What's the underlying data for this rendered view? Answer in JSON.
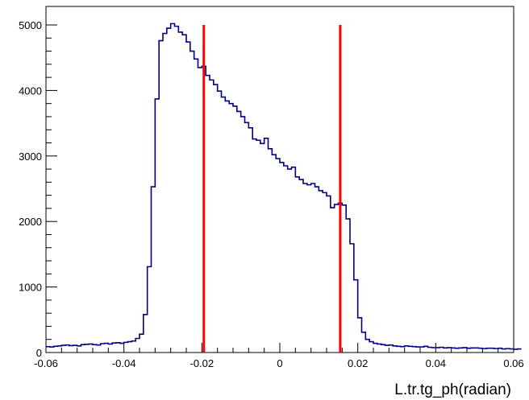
{
  "chart_data": {
    "type": "histogram",
    "title": "",
    "xlabel": "L.tr.tg_ph(radian)",
    "ylabel": "",
    "xlim": [
      -0.06,
      0.06
    ],
    "ylim": [
      0,
      5000
    ],
    "grid": false,
    "legend": "none",
    "x_ticks": [
      -0.06,
      -0.04,
      -0.02,
      0,
      0.02,
      0.04,
      0.06
    ],
    "x_tick_labels": [
      "-0.06",
      "-0.04",
      "-0.02",
      "0",
      "0.02",
      "0.04",
      "0.06"
    ],
    "y_ticks": [
      0,
      1000,
      2000,
      3000,
      4000,
      5000
    ],
    "y_tick_labels": [
      "0",
      "1000",
      "2000",
      "3000",
      "4000",
      "5000"
    ],
    "bin_start": -0.06,
    "bin_width": 0.001,
    "counts": [
      90,
      85,
      95,
      100,
      110,
      115,
      105,
      110,
      100,
      120,
      125,
      130,
      120,
      115,
      135,
      140,
      130,
      145,
      150,
      140,
      155,
      165,
      175,
      215,
      280,
      580,
      1310,
      2530,
      3870,
      4760,
      4870,
      4950,
      5020,
      4980,
      4890,
      4850,
      4740,
      4600,
      4480,
      4350,
      4370,
      4230,
      4160,
      4090,
      3990,
      3900,
      3840,
      3800,
      3760,
      3680,
      3600,
      3510,
      3430,
      3260,
      3240,
      3190,
      3270,
      3110,
      3020,
      2960,
      2900,
      2850,
      2800,
      2830,
      2680,
      2640,
      2580,
      2560,
      2580,
      2530,
      2470,
      2440,
      2390,
      2210,
      2260,
      2280,
      2250,
      2040,
      1660,
      1110,
      530,
      310,
      200,
      165,
      140,
      130,
      120,
      110,
      115,
      100,
      95,
      90,
      100,
      95,
      90,
      85,
      85,
      95,
      80,
      75,
      75,
      80,
      70,
      75,
      70,
      65,
      70,
      75,
      65,
      70,
      70,
      65,
      60,
      65,
      65,
      60,
      65,
      55,
      60,
      55,
      50,
      55
    ],
    "series_color": "#000080",
    "cut_lines": {
      "color": "#ff0000",
      "x": [
        -0.0195,
        0.0155
      ],
      "y_top": 5000
    }
  }
}
